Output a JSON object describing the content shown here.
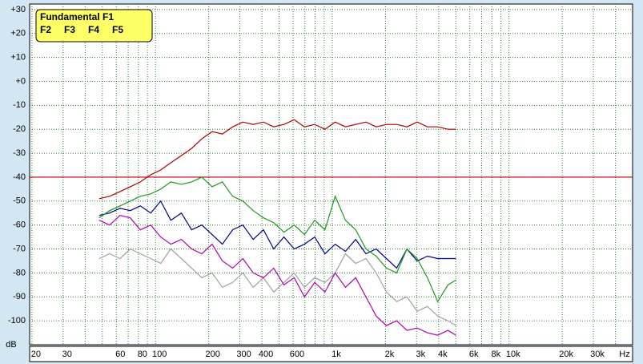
{
  "chart_data": {
    "type": "line",
    "x_axis_label": "Hz",
    "y_axis_label": "dB",
    "x_log_scale": true,
    "xlim": [
      19.4,
      50000
    ],
    "ylim": [
      -110,
      32.3
    ],
    "xticks": [
      20,
      30,
      60,
      80,
      100,
      200,
      300,
      400,
      600,
      {
        "value": 1000,
        "label": "1k"
      },
      {
        "value": 2000,
        "label": "2k"
      },
      {
        "value": 3000,
        "label": "3k"
      },
      {
        "value": 4000,
        "label": "4k"
      },
      {
        "value": 6000,
        "label": "6k"
      },
      {
        "value": 8000,
        "label": "8k"
      },
      {
        "value": 10000,
        "label": "10k"
      },
      {
        "value": 20000,
        "label": "20k"
      },
      {
        "value": 30000,
        "label": "30k"
      }
    ],
    "x_minor_ticks": [
      40,
      50,
      70,
      90,
      500,
      700,
      800,
      900,
      5000,
      7000,
      9000,
      40000
    ],
    "yticks": [
      {
        "value": 30,
        "label": "+30"
      },
      {
        "value": 20,
        "label": "+20"
      },
      {
        "value": 10,
        "label": "+10"
      },
      {
        "value": 0,
        "label": "+0"
      },
      -10,
      -20,
      -30,
      -40,
      -50,
      -60,
      -70,
      -80,
      -90,
      -100
    ],
    "grid": true,
    "grid_color": "#2e7d32",
    "reference_line": {
      "value": -40,
      "color": "#c00000"
    },
    "legend_position": "upper left",
    "x": [
      48,
      55,
      63,
      72,
      82,
      94,
      107,
      122,
      140,
      160,
      183,
      209,
      239,
      273,
      312,
      357,
      408,
      466,
      533,
      609,
      696,
      795,
      909,
      1039,
      1187,
      1357,
      1551,
      1772,
      2025,
      2314,
      2645,
      3022,
      3454,
      3947,
      4511,
      5000
    ],
    "series": [
      {
        "name": "Fundamental F1",
        "color": "#b00000",
        "values": [
          -49,
          -48,
          -46,
          -44,
          -42,
          -39,
          -37,
          -34,
          -31,
          -28,
          -24,
          -21,
          -22,
          -19,
          -17,
          -18,
          -17,
          -19,
          -18,
          -16,
          -19,
          -18,
          -20,
          -17,
          -19,
          -18,
          -17,
          -19,
          -18,
          -18,
          -19,
          -17,
          -19,
          -19,
          -20,
          -20
        ]
      },
      {
        "name": "F2",
        "color": "#1a9a1a",
        "values": [
          -57,
          -54,
          -52,
          -50,
          -48,
          -47,
          -45,
          -42,
          -43,
          -42,
          -40,
          -44,
          -42,
          -48,
          -50,
          -54,
          -57,
          -59,
          -63,
          -60,
          -64,
          -58,
          -62,
          -48,
          -58,
          -62,
          -70,
          -73,
          -78,
          -80,
          -70,
          -74,
          -82,
          -92,
          -85,
          -83
        ]
      },
      {
        "name": "F3",
        "color": "#000090",
        "values": [
          -56,
          -55,
          -53,
          -54,
          -52,
          -55,
          -50,
          -58,
          -55,
          -62,
          -60,
          -64,
          -68,
          -62,
          -60,
          -66,
          -62,
          -70,
          -65,
          -70,
          -68,
          -65,
          -72,
          -68,
          -71,
          -66,
          -72,
          -70,
          -74,
          -78,
          -70,
          -75,
          -73,
          -74,
          -74,
          -74
        ]
      },
      {
        "name": "F4",
        "color": "#b000b0",
        "values": [
          -58,
          -60,
          -56,
          -57,
          -62,
          -60,
          -65,
          -68,
          -66,
          -70,
          -72,
          -68,
          -75,
          -78,
          -74,
          -80,
          -82,
          -78,
          -85,
          -82,
          -90,
          -84,
          -88,
          -80,
          -86,
          -82,
          -90,
          -98,
          -102,
          -100,
          -104,
          -103,
          -105,
          -106,
          -104,
          -106
        ]
      },
      {
        "name": "F5",
        "color": "#a0a0a0",
        "values": [
          -74,
          -72,
          -74,
          -70,
          -72,
          -74,
          -76,
          -70,
          -74,
          -78,
          -82,
          -80,
          -86,
          -84,
          -80,
          -86,
          -82,
          -88,
          -84,
          -80,
          -86,
          -82,
          -84,
          -80,
          -72,
          -76,
          -74,
          -80,
          -88,
          -92,
          -90,
          -96,
          -94,
          -98,
          -100,
          -102
        ]
      }
    ]
  }
}
